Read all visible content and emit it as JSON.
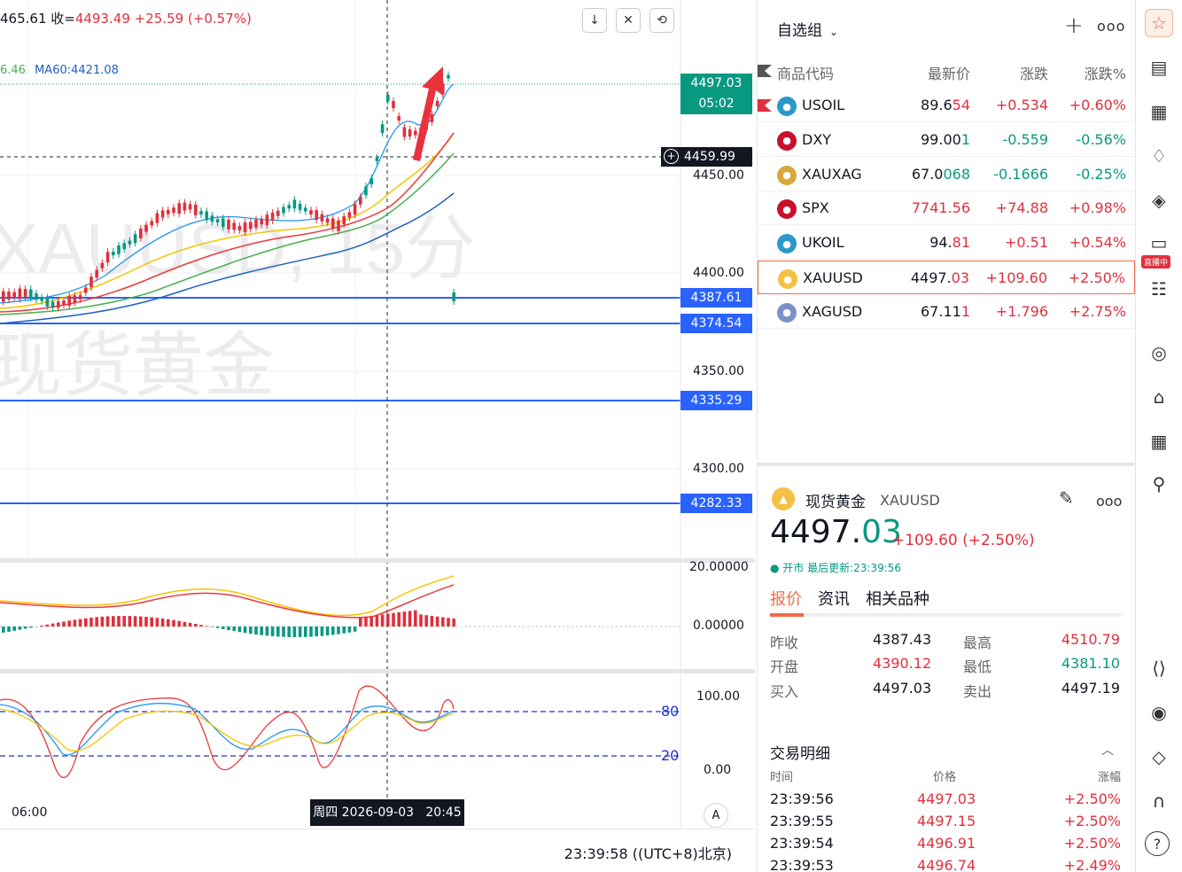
{
  "chart": {
    "ohlc_prefix": "465.61 收=",
    "close": "4493.49",
    "change": "+25.59 (+0.57%)",
    "ma_left": "6.46",
    "ma60": "MA60:4421.08",
    "watermark_symbol": "XAUUSD, 15分",
    "watermark_name": "现货黄金",
    "price_axis_ticks": [
      "4450.00",
      "4400.00",
      "4350.00",
      "4300.00"
    ],
    "last_price_tag": "4497.03",
    "countdown_tag": "05:02",
    "crosshair_price": "4459.99",
    "level_tags": [
      "4387.61",
      "4374.54",
      "4335.29",
      "4282.33"
    ],
    "macd_ticks": [
      "20.00000",
      "0.00000"
    ],
    "kdj_ticks": [
      "100.00",
      "0.00"
    ],
    "kdj_levels": [
      "80",
      "20"
    ],
    "time_label": "06:00",
    "crosshair_time": "周四 2026-09-03   20:45",
    "axis_mode": "A",
    "clock": "23:39:58 ((UTC+8)北京)",
    "toolbar": {
      "down_icon": "↓",
      "collapse_icon": "✕",
      "fit_icon": "⟲"
    }
  },
  "watchlist": {
    "group": "自选组",
    "plus": "+",
    "more": "ooo",
    "columns": {
      "code": "商品代码",
      "last": "最新价",
      "chg": "涨跌",
      "pct": "涨跌%"
    },
    "rows": [
      {
        "symbol": "USOIL",
        "last_a": "89.6",
        "last_b": "54",
        "chg": "+0.534",
        "pct": "+0.60%",
        "dir": "up",
        "icon": "oil-icon"
      },
      {
        "symbol": "DXY",
        "last_a": "99.00",
        "last_b": "1",
        "chg": "-0.559",
        "pct": "-0.56%",
        "dir": "down",
        "icon": "us-flag-icon"
      },
      {
        "symbol": "XAUXAG",
        "last_a": "67.0",
        "last_b": "068",
        "chg": "-0.1666",
        "pct": "-0.25%",
        "dir": "down",
        "icon": "gold-silver-icon"
      },
      {
        "symbol": "SPX",
        "last_a": "",
        "last_b": "7741.56",
        "chg": "+74.88",
        "pct": "+0.98%",
        "dir": "up",
        "icon": "us-flag-icon"
      },
      {
        "symbol": "UKOIL",
        "last_a": "94.",
        "last_b": "81",
        "chg": "+0.51",
        "pct": "+0.54%",
        "dir": "up",
        "icon": "oil-icon"
      },
      {
        "symbol": "XAUUSD",
        "last_a": "4497.",
        "last_b": "03",
        "chg": "+109.60",
        "pct": "+2.50%",
        "dir": "up",
        "icon": "gold-icon"
      },
      {
        "symbol": "XAGUSD",
        "last_a": "67.11",
        "last_b": "1",
        "chg": "+1.796",
        "pct": "+2.75%",
        "dir": "up",
        "icon": "silver-icon"
      }
    ]
  },
  "detail": {
    "name": "现货黄金",
    "code": "XAUUSD",
    "price_main": "4497.",
    "price_tail": "03",
    "change": "+109.60 (+2.50%)",
    "status": "● 开市 最后更新:23:39:56",
    "tabs": [
      "报价",
      "资讯",
      "相关品种"
    ],
    "quotes": {
      "prev_close_label": "昨收",
      "prev_close": "4387.43",
      "open_label": "开盘",
      "open": "4390.12",
      "bid_label": "买入",
      "bid": "4497.03",
      "high_label": "最高",
      "high": "4510.79",
      "low_label": "最低",
      "low": "4381.10",
      "ask_label": "卖出",
      "ask": "4497.19"
    },
    "trades_title": "交易明细",
    "trade_cols": {
      "time": "时间",
      "price": "价格",
      "pct": "涨幅"
    },
    "trades": [
      {
        "time": "23:39:56",
        "price": "4497.03",
        "pct": "+2.50%"
      },
      {
        "time": "23:39:55",
        "price": "4497.15",
        "pct": "+2.50%"
      },
      {
        "time": "23:39:54",
        "price": "4496.91",
        "pct": "+2.50%"
      },
      {
        "time": "23:39:53",
        "price": "4496.74",
        "pct": "+2.49%"
      }
    ]
  },
  "right_toolbar": {
    "live_badge": "直播中"
  }
}
